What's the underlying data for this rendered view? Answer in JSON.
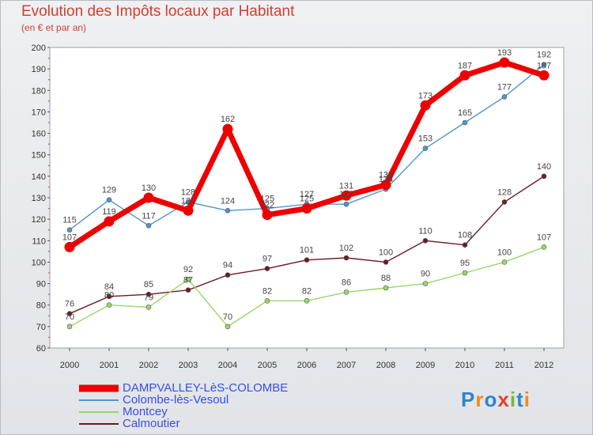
{
  "title": "Evolution des Impôts locaux par Habitant",
  "subtitle": "(en € et par an)",
  "brand": "Proxiti",
  "chart_data": {
    "type": "line",
    "title": "Evolution des Impôts locaux par Habitant",
    "subtitle": "(en € et par an)",
    "xlabel": "",
    "ylabel": "",
    "ylim": [
      60,
      200
    ],
    "yticks": [
      60,
      70,
      80,
      90,
      100,
      110,
      120,
      130,
      140,
      150,
      160,
      170,
      180,
      190,
      200
    ],
    "categories": [
      "2000",
      "2001",
      "2002",
      "2003",
      "2004",
      "2005",
      "2006",
      "2007",
      "2008",
      "2009",
      "2010",
      "2011",
      "2012"
    ],
    "grid": false,
    "legend_position": "bottom-left",
    "series": [
      {
        "name": "DAMPVALLEY-LèS-COLOMBE",
        "color": "#ee0000",
        "values": [
          107,
          119,
          130,
          124,
          162,
          122,
          125,
          131,
          136,
          173,
          187,
          193,
          187
        ]
      },
      {
        "name": "Colombe-lès-Vesoul",
        "color": "#4f95d0",
        "values": [
          115,
          129,
          117,
          128,
          124,
          125,
          127,
          127,
          134,
          153,
          165,
          177,
          192
        ]
      },
      {
        "name": "Montcey",
        "color": "#99d66b",
        "values": [
          70,
          80,
          79,
          92,
          70,
          82,
          82,
          86,
          88,
          90,
          95,
          100,
          107
        ]
      },
      {
        "name": "Calmoutier",
        "color": "#6e1a24",
        "values": [
          76,
          84,
          85,
          87,
          94,
          97,
          101,
          102,
          100,
          110,
          108,
          128,
          140
        ]
      }
    ],
    "labels_shown": [
      [
        "107",
        "119",
        "130",
        "124",
        "162",
        "122",
        "125",
        "131",
        "136",
        "173",
        "187",
        "193",
        "187"
      ],
      [
        "115",
        "129",
        "117",
        "128",
        "124",
        "125",
        "127",
        "127",
        "134",
        "153",
        "165",
        "177",
        "192"
      ],
      [
        "70",
        "80",
        "79",
        "92",
        "70",
        "82",
        "82",
        "86",
        "88",
        "90",
        "95",
        "100",
        "107"
      ],
      [
        "76",
        "84",
        "85",
        "87",
        "94",
        "97",
        "101",
        "102",
        "100",
        "110",
        "108",
        "128",
        "140"
      ]
    ]
  }
}
